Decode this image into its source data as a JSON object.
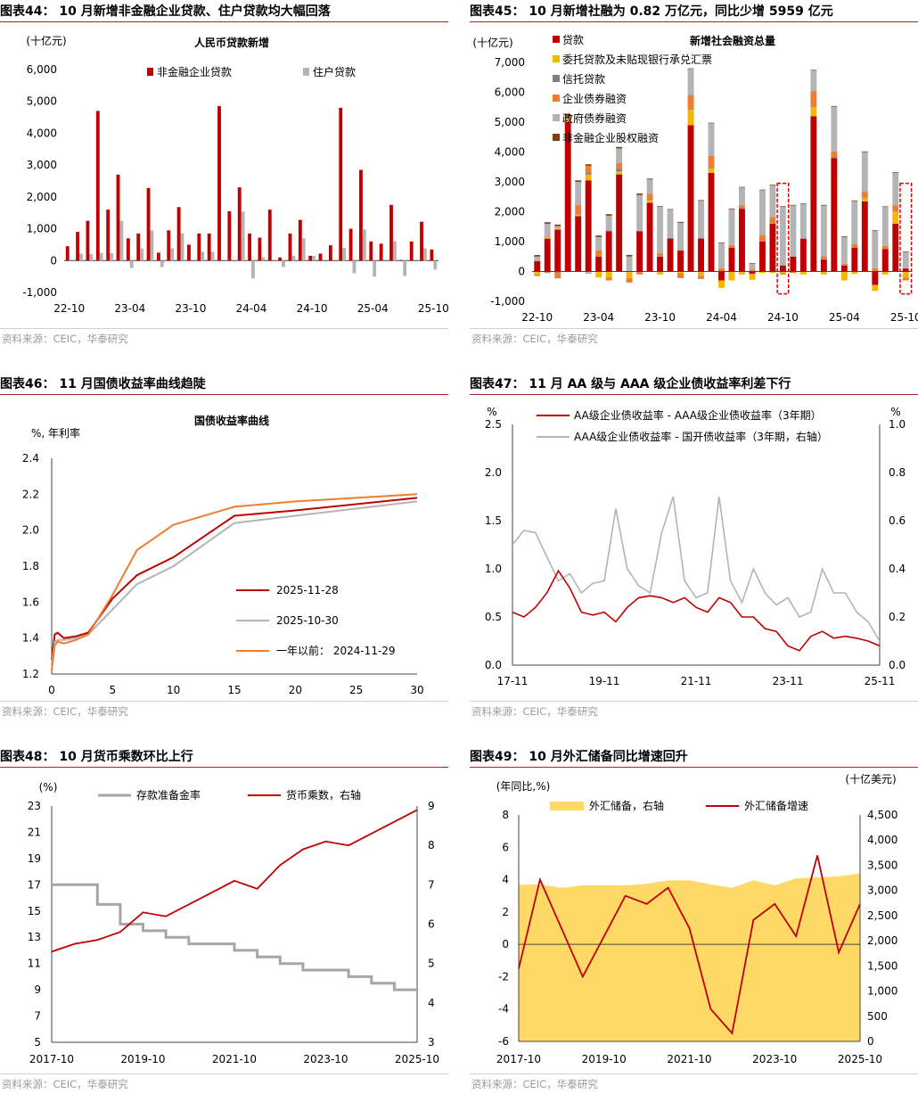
{
  "panels": [
    {
      "title": "图表44：  10 月新增非金融企业贷款、住户贷款均大幅回落",
      "source": "资料来源：CEIC，华泰研究"
    },
    {
      "title": "图表45：  10 月新增社融为 0.82 万亿元，同比少增 5959 亿元",
      "source": "资料来源：CEIC，华泰研究"
    },
    {
      "title": "图表46：  11 月国债收益率曲线趋陡",
      "source": "资料来源：CEIC，华泰研究"
    },
    {
      "title": "图表47：  11 月 AA 级与 AAA 级企业债收益率利差下行",
      "source": "资料来源：CEIC，华泰研究"
    },
    {
      "title": "图表48：  10 月货币乘数环比上行",
      "source": "资料来源：CEIC，华泰研究"
    },
    {
      "title": "图表49：  10 月外汇储备同比增速回升",
      "source": "资料来源：CEIC，华泰研究"
    }
  ],
  "chart_data": [
    {
      "type": "bar",
      "title": "人民币贷款新增",
      "unit": "(十亿元)",
      "yticks": [
        "-1,000",
        "0",
        "1,000",
        "2,000",
        "3,000",
        "4,000",
        "5,000",
        "6,000"
      ],
      "ylim": [
        -1000,
        6000
      ],
      "xticks": [
        "22-10",
        "23-04",
        "23-10",
        "24-04",
        "24-10",
        "25-04",
        "25-10"
      ],
      "categories": [
        "22-10",
        "22-11",
        "22-12",
        "23-01",
        "23-02",
        "23-03",
        "23-04",
        "23-05",
        "23-06",
        "23-07",
        "23-08",
        "23-09",
        "23-10",
        "23-11",
        "23-12",
        "24-01",
        "24-02",
        "24-03",
        "24-04",
        "24-05",
        "24-06",
        "24-07",
        "24-08",
        "24-09",
        "24-10",
        "24-11",
        "24-12",
        "25-01",
        "25-02",
        "25-03",
        "25-04",
        "25-05",
        "25-06",
        "25-07",
        "25-08",
        "25-09",
        "25-10"
      ],
      "series": [
        {
          "name": "非金融企业贷款",
          "color": "#c00000",
          "values": [
            450,
            900,
            1250,
            4700,
            1600,
            2700,
            700,
            850,
            2280,
            250,
            950,
            1680,
            500,
            850,
            850,
            4850,
            1550,
            2300,
            850,
            720,
            1600,
            100,
            850,
            1280,
            150,
            220,
            480,
            4800,
            1000,
            2850,
            600,
            530,
            1750,
            20,
            600,
            1220,
            350
          ]
        },
        {
          "name": "住户贷款",
          "color": "#b4b4b4",
          "values": [
            0,
            220,
            200,
            240,
            230,
            1250,
            -230,
            380,
            950,
            -200,
            390,
            860,
            0,
            280,
            280,
            0,
            0,
            1540,
            -560,
            100,
            0,
            -200,
            150,
            700,
            150,
            0,
            0,
            400,
            -400,
            980,
            -500,
            0,
            610,
            -480,
            0,
            380,
            -280
          ]
        }
      ]
    },
    {
      "type": "bar",
      "title": "新增社会融资总量",
      "unit": "(十亿元)",
      "yticks": [
        "-1,000",
        "0",
        "1,000",
        "2,000",
        "3,000",
        "4,000",
        "5,000",
        "6,000",
        "7,000"
      ],
      "ylim": [
        -1000,
        7000
      ],
      "xticks": [
        "22-10",
        "23-04",
        "23-10",
        "24-04",
        "24-10",
        "25-04",
        "25-10"
      ],
      "categories": [
        "22-10",
        "22-11",
        "22-12",
        "23-01",
        "23-02",
        "23-03",
        "23-04",
        "23-05",
        "23-06",
        "23-07",
        "23-08",
        "23-09",
        "23-10",
        "23-11",
        "23-12",
        "24-01",
        "24-02",
        "24-03",
        "24-04",
        "24-05",
        "24-06",
        "24-07",
        "24-08",
        "24-09",
        "24-10",
        "24-11",
        "24-12",
        "25-01",
        "25-02",
        "25-03",
        "25-04",
        "25-05",
        "25-06",
        "25-07",
        "25-08",
        "25-09",
        "25-10"
      ],
      "series": [
        {
          "name": "贷款",
          "color": "#c00000",
          "values": [
            350,
            1100,
            1400,
            5000,
            1850,
            3050,
            500,
            1350,
            3250,
            -20,
            1350,
            2300,
            500,
            1100,
            700,
            4900,
            1100,
            3300,
            -300,
            800,
            2100,
            -80,
            1000,
            1600,
            200,
            500,
            1100,
            5200,
            400,
            3800,
            200,
            800,
            2350,
            -450,
            750,
            1600,
            100
          ]
        },
        {
          "name": "委托贷款及未贴现银行承兑汇票",
          "color": "#f5b800",
          "values": [
            -100,
            50,
            30,
            100,
            50,
            200,
            -200,
            -200,
            100,
            -200,
            0,
            80,
            -100,
            0,
            -50,
            500,
            -150,
            150,
            -250,
            -300,
            -100,
            -200,
            -50,
            -50,
            -50,
            0,
            -100,
            300,
            -100,
            -10,
            -300,
            -80,
            100,
            -200,
            -100,
            400,
            -200
          ]
        },
        {
          "name": "信托贷款",
          "color": "#808080",
          "values": [
            0,
            0,
            -30,
            10,
            20,
            60,
            5,
            20,
            80,
            5,
            10,
            20,
            10,
            20,
            -20,
            10,
            20,
            20,
            10,
            10,
            20,
            10,
            10,
            20,
            10,
            10,
            10,
            30,
            10,
            20,
            10,
            10,
            20,
            10,
            10,
            10,
            10
          ]
        },
        {
          "name": "企业债券融资",
          "color": "#ed7d31",
          "values": [
            -50,
            -50,
            -200,
            100,
            300,
            230,
            200,
            -100,
            200,
            -150,
            -100,
            200,
            100,
            0,
            -150,
            500,
            -100,
            400,
            100,
            80,
            100,
            50,
            200,
            200,
            -50,
            -50,
            0,
            500,
            100,
            200,
            50,
            100,
            200,
            100,
            100,
            200,
            -100
          ]
        },
        {
          "name": "政府债券融资",
          "color": "#b4b4b4",
          "values": [
            150,
            450,
            90,
            -20,
            780,
            -80,
            450,
            500,
            490,
            500,
            1200,
            480,
            1560,
            950,
            930,
            870,
            1250,
            1090,
            840,
            1200,
            590,
            200,
            1510,
            1070,
            1960,
            1700,
            1150,
            700,
            1700,
            1500,
            900,
            1450,
            1330,
            1250,
            1300,
            1100,
            540
          ]
        },
        {
          "name": "非金融企业股权融资",
          "color": "#843c0c",
          "values": [
            50,
            50,
            50,
            60,
            50,
            50,
            50,
            50,
            50,
            50,
            50,
            30,
            20,
            20,
            30,
            20,
            20,
            20,
            20,
            20,
            20,
            20,
            20,
            20,
            20,
            20,
            20,
            20,
            20,
            20,
            20,
            20,
            20,
            20,
            20,
            20,
            20
          ]
        }
      ],
      "highlight": [
        "24-10",
        "25-10"
      ]
    },
    {
      "type": "line",
      "title": "国债收益率曲线",
      "ylabel": "%, 年利率",
      "xlim": [
        0,
        30
      ],
      "ylim": [
        1.2,
        2.4
      ],
      "xticks": [
        "0",
        "5",
        "10",
        "15",
        "20",
        "25",
        "30"
      ],
      "yticks": [
        "1.2",
        "1.4",
        "1.6",
        "1.8",
        "2.0",
        "2.2",
        "2.4"
      ],
      "x": [
        0,
        0.25,
        0.5,
        1,
        2,
        3,
        5,
        7,
        10,
        15,
        20,
        30
      ],
      "series": [
        {
          "name": "2025-11-28",
          "color": "#c00000",
          "values": [
            1.28,
            1.42,
            1.43,
            1.4,
            1.41,
            1.43,
            1.62,
            1.75,
            1.85,
            2.08,
            2.11,
            2.18
          ]
        },
        {
          "name": "2025-10-30",
          "color": "#b4b4b4",
          "values": [
            1.25,
            1.38,
            1.39,
            1.39,
            1.4,
            1.42,
            1.56,
            1.7,
            1.8,
            2.04,
            2.08,
            2.16
          ]
        },
        {
          "name": "一年以前：  2024-11-29",
          "color": "#ed7d31",
          "values": [
            1.22,
            1.36,
            1.38,
            1.37,
            1.39,
            1.42,
            1.64,
            1.89,
            2.03,
            2.13,
            2.16,
            2.2
          ]
        }
      ]
    },
    {
      "type": "line",
      "unit_left": "%",
      "unit_right": "%",
      "ylim": [
        0,
        2.5
      ],
      "y2lim": [
        0,
        1.0
      ],
      "xticks": [
        "17-11",
        "19-11",
        "21-11",
        "23-11",
        "25-11"
      ],
      "yticks": [
        "0.0",
        "0.5",
        "1.0",
        "1.5",
        "2.0",
        "2.5"
      ],
      "y2ticks": [
        "0.0",
        "0.2",
        "0.4",
        "0.6",
        "0.8",
        "1.0"
      ],
      "x": [
        "17-11",
        "18-02",
        "18-05",
        "18-08",
        "18-11",
        "19-02",
        "19-05",
        "19-08",
        "19-11",
        "20-02",
        "20-05",
        "20-08",
        "20-11",
        "21-02",
        "21-05",
        "21-08",
        "21-11",
        "22-02",
        "22-05",
        "22-08",
        "22-11",
        "23-02",
        "23-05",
        "23-08",
        "23-11",
        "24-02",
        "24-05",
        "24-08",
        "24-11",
        "25-02",
        "25-05",
        "25-08",
        "25-11"
      ],
      "series": [
        {
          "name": "AA级企业债收益率 - AAA级企业债收益率（3年期）",
          "color": "#c00000",
          "axis": "left",
          "values": [
            0.55,
            0.5,
            0.6,
            0.75,
            0.98,
            0.8,
            0.55,
            0.52,
            0.55,
            0.45,
            0.6,
            0.7,
            0.72,
            0.7,
            0.65,
            0.7,
            0.6,
            0.55,
            0.7,
            0.65,
            0.5,
            0.5,
            0.38,
            0.35,
            0.2,
            0.15,
            0.3,
            0.35,
            0.28,
            0.3,
            0.28,
            0.25,
            0.2
          ]
        },
        {
          "name": "AAA级企业债收益率 - 国开债收益率（3年期，右轴）",
          "color": "#b4b4b4",
          "axis": "right",
          "values": [
            0.5,
            0.56,
            0.55,
            0.45,
            0.35,
            0.38,
            0.3,
            0.34,
            0.35,
            0.65,
            0.4,
            0.33,
            0.3,
            0.55,
            0.7,
            0.35,
            0.28,
            0.3,
            0.7,
            0.35,
            0.26,
            0.4,
            0.3,
            0.25,
            0.28,
            0.2,
            0.22,
            0.4,
            0.3,
            0.3,
            0.22,
            0.18,
            0.1
          ]
        }
      ]
    },
    {
      "type": "line",
      "unit_left": "(%)",
      "ylim": [
        5,
        23
      ],
      "y2lim": [
        3,
        9
      ],
      "xticks": [
        "2017-10",
        "2019-10",
        "2021-10",
        "2023-10",
        "2025-10"
      ],
      "yticks": [
        "5",
        "7",
        "9",
        "11",
        "13",
        "15",
        "17",
        "19",
        "21",
        "23"
      ],
      "y2ticks": [
        "3",
        "4",
        "5",
        "6",
        "7",
        "8",
        "9"
      ],
      "x": [
        "2017-10",
        "2018-04",
        "2018-10",
        "2019-04",
        "2019-10",
        "2020-04",
        "2020-10",
        "2021-04",
        "2021-10",
        "2022-04",
        "2022-10",
        "2023-04",
        "2023-10",
        "2024-04",
        "2024-10",
        "2025-04",
        "2025-10"
      ],
      "series": [
        {
          "name": "存款准备金率",
          "color": "#a6a6a6",
          "axis": "left",
          "values": [
            17.0,
            17.0,
            15.5,
            14.0,
            13.5,
            13.0,
            12.5,
            12.5,
            12.0,
            11.5,
            11.0,
            10.5,
            10.5,
            10.0,
            9.5,
            9.0,
            9.0
          ]
        },
        {
          "name": "货币乘数，右轴",
          "color": "#c00000",
          "axis": "right",
          "values": [
            5.3,
            5.5,
            5.6,
            5.8,
            6.3,
            6.2,
            6.5,
            6.8,
            7.1,
            6.9,
            7.5,
            7.9,
            8.1,
            8.0,
            8.3,
            8.6,
            8.9
          ]
        }
      ]
    },
    {
      "type": "area",
      "unit_left": "(年同比,%)",
      "unit_right": "(十亿美元)",
      "ylim": [
        -6,
        8
      ],
      "y2lim": [
        0,
        4500
      ],
      "xticks": [
        "2017-10",
        "2019-10",
        "2021-10",
        "2023-10",
        "2025-10"
      ],
      "yticks": [
        "-6",
        "-4",
        "-2",
        "0",
        "2",
        "4",
        "6",
        "8"
      ],
      "y2ticks": [
        "0",
        "500",
        "1,000",
        "1,500",
        "2,000",
        "2,500",
        "3,000",
        "3,500",
        "4,000",
        "4,500"
      ],
      "x": [
        "2017-10",
        "2018-04",
        "2018-10",
        "2019-04",
        "2019-10",
        "2020-04",
        "2020-10",
        "2021-04",
        "2021-10",
        "2022-04",
        "2022-10",
        "2023-04",
        "2023-10",
        "2024-04",
        "2024-10",
        "2025-04",
        "2025-10"
      ],
      "series": [
        {
          "name": "外汇储备，右轴",
          "color": "#ffd966",
          "axis": "right",
          "type": "area",
          "values": [
            3110,
            3125,
            3050,
            3100,
            3100,
            3100,
            3130,
            3200,
            3200,
            3120,
            3050,
            3200,
            3100,
            3240,
            3260,
            3280,
            3340
          ]
        },
        {
          "name": "外汇储备增速",
          "color": "#c00000",
          "axis": "left",
          "type": "line",
          "values": [
            -1.5,
            4.0,
            1.0,
            -2.0,
            0.5,
            3.0,
            2.5,
            3.5,
            1.0,
            -4.0,
            -5.5,
            1.5,
            2.5,
            0.5,
            5.5,
            -0.5,
            2.5
          ]
        }
      ]
    }
  ]
}
